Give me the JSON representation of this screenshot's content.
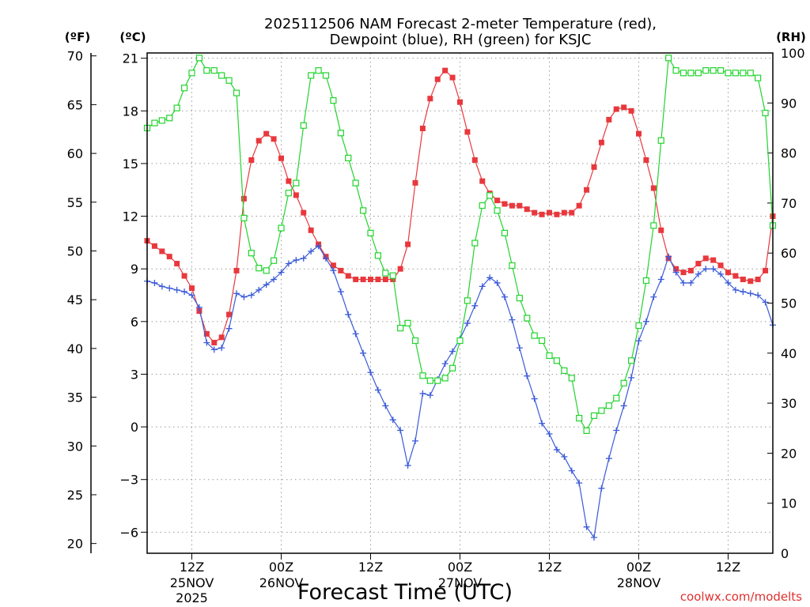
{
  "chart_data": {
    "type": "line",
    "title_lines": [
      "2025112506 NAM Forecast 2-meter Temperature (red),",
      "Dewpoint (blue), RH (green) for KSJC"
    ],
    "xlabel": "Forecast Time (UTC)",
    "credit": "coolwx.com/modelts",
    "unit_labels": {
      "fahrenheit": "(ºF)",
      "celsius": "(ºC)",
      "rh": "(RH)"
    },
    "x_domain": [
      0,
      84
    ],
    "x_ticks": [
      {
        "hour": 6,
        "label": "12Z",
        "sub": [
          "25NOV",
          "2025"
        ]
      },
      {
        "hour": 18,
        "label": "00Z",
        "sub": [
          "26NOV"
        ]
      },
      {
        "hour": 30,
        "label": "12Z",
        "sub": []
      },
      {
        "hour": 42,
        "label": "00Z",
        "sub": [
          "27NOV"
        ]
      },
      {
        "hour": 54,
        "label": "12Z",
        "sub": []
      },
      {
        "hour": 66,
        "label": "00Z",
        "sub": [
          "28NOV"
        ]
      },
      {
        "hour": 78,
        "label": "12Z",
        "sub": []
      }
    ],
    "y_celsius": {
      "range": [
        -7.2,
        21.3
      ],
      "ticks": [
        -6,
        -3,
        0,
        3,
        6,
        9,
        12,
        15,
        18,
        21
      ],
      "tick_labels": [
        "−6",
        "−3",
        "0",
        "3",
        "6",
        "9",
        "12",
        "15",
        "18",
        "21"
      ]
    },
    "y_fahrenheit": {
      "range": [
        19.0,
        70.3
      ],
      "ticks": [
        20,
        25,
        30,
        35,
        40,
        45,
        50,
        55,
        60,
        65,
        70
      ],
      "tick_labels": [
        "20",
        "25",
        "30",
        "35",
        "40",
        "45",
        "50",
        "55",
        "60",
        "65",
        "70"
      ]
    },
    "y_rh": {
      "range": [
        0,
        100
      ],
      "ticks": [
        0,
        10,
        20,
        30,
        40,
        50,
        60,
        70,
        80,
        90,
        100
      ],
      "tick_labels": [
        "0",
        "10",
        "20",
        "30",
        "40",
        "50",
        "60",
        "70",
        "80",
        "90",
        "100"
      ]
    },
    "grid": true,
    "series": [
      {
        "name": "Temperature",
        "color": "#e8383d",
        "marker": "square-filled",
        "axis": "celsius",
        "values": [
          [
            0,
            10.6
          ],
          [
            1,
            10.3
          ],
          [
            2,
            10.0
          ],
          [
            3,
            9.7
          ],
          [
            4,
            9.3
          ],
          [
            5,
            8.6
          ],
          [
            6,
            7.9
          ],
          [
            7,
            6.6
          ],
          [
            8,
            5.3
          ],
          [
            9,
            4.8
          ],
          [
            10,
            5.1
          ],
          [
            11,
            6.4
          ],
          [
            12,
            8.9
          ],
          [
            13,
            13.0
          ],
          [
            14,
            15.2
          ],
          [
            15,
            16.3
          ],
          [
            16,
            16.7
          ],
          [
            17,
            16.4
          ],
          [
            18,
            15.3
          ],
          [
            19,
            14.0
          ],
          [
            20,
            13.2
          ],
          [
            21,
            12.2
          ],
          [
            22,
            11.2
          ],
          [
            23,
            10.4
          ],
          [
            24,
            9.7
          ],
          [
            25,
            9.2
          ],
          [
            26,
            8.9
          ],
          [
            27,
            8.6
          ],
          [
            28,
            8.4
          ],
          [
            29,
            8.4
          ],
          [
            30,
            8.4
          ],
          [
            31,
            8.4
          ],
          [
            32,
            8.4
          ],
          [
            33,
            8.4
          ],
          [
            34,
            9.0
          ],
          [
            35,
            10.4
          ],
          [
            36,
            13.9
          ],
          [
            37,
            17.0
          ],
          [
            38,
            18.7
          ],
          [
            39,
            19.8
          ],
          [
            40,
            20.3
          ],
          [
            41,
            19.9
          ],
          [
            42,
            18.5
          ],
          [
            43,
            16.8
          ],
          [
            44,
            15.2
          ],
          [
            45,
            14.0
          ],
          [
            46,
            13.3
          ],
          [
            47,
            12.9
          ],
          [
            48,
            12.7
          ],
          [
            49,
            12.6
          ],
          [
            50,
            12.6
          ],
          [
            51,
            12.4
          ],
          [
            52,
            12.2
          ],
          [
            53,
            12.1
          ],
          [
            54,
            12.2
          ],
          [
            55,
            12.1
          ],
          [
            56,
            12.2
          ],
          [
            57,
            12.2
          ],
          [
            58,
            12.6
          ],
          [
            59,
            13.5
          ],
          [
            60,
            14.8
          ],
          [
            61,
            16.2
          ],
          [
            62,
            17.5
          ],
          [
            63,
            18.1
          ],
          [
            64,
            18.2
          ],
          [
            65,
            18.0
          ],
          [
            66,
            16.7
          ],
          [
            67,
            15.2
          ],
          [
            68,
            13.6
          ],
          [
            69,
            11.2
          ],
          [
            70,
            9.6
          ],
          [
            71,
            9.0
          ],
          [
            72,
            8.8
          ],
          [
            73,
            8.9
          ],
          [
            74,
            9.3
          ],
          [
            75,
            9.6
          ],
          [
            76,
            9.5
          ],
          [
            77,
            9.2
          ],
          [
            78,
            8.8
          ],
          [
            79,
            8.6
          ],
          [
            80,
            8.4
          ],
          [
            81,
            8.3
          ],
          [
            82,
            8.4
          ],
          [
            83,
            8.9
          ],
          [
            84,
            12.0
          ]
        ]
      },
      {
        "name": "Dewpoint",
        "color": "#3a5ad8",
        "marker": "plus",
        "axis": "celsius",
        "values": [
          [
            0,
            8.3
          ],
          [
            1,
            8.2
          ],
          [
            2,
            8.0
          ],
          [
            3,
            7.9
          ],
          [
            4,
            7.8
          ],
          [
            5,
            7.7
          ],
          [
            6,
            7.5
          ],
          [
            7,
            6.8
          ],
          [
            8,
            4.8
          ],
          [
            9,
            4.4
          ],
          [
            10,
            4.5
          ],
          [
            11,
            5.6
          ],
          [
            12,
            7.6
          ],
          [
            13,
            7.4
          ],
          [
            14,
            7.5
          ],
          [
            15,
            7.8
          ],
          [
            16,
            8.1
          ],
          [
            17,
            8.4
          ],
          [
            18,
            8.8
          ],
          [
            19,
            9.3
          ],
          [
            20,
            9.5
          ],
          [
            21,
            9.6
          ],
          [
            22,
            10.0
          ],
          [
            23,
            10.3
          ],
          [
            24,
            9.6
          ],
          [
            25,
            8.9
          ],
          [
            26,
            7.7
          ],
          [
            27,
            6.4
          ],
          [
            28,
            5.3
          ],
          [
            29,
            4.2
          ],
          [
            30,
            3.1
          ],
          [
            31,
            2.1
          ],
          [
            32,
            1.2
          ],
          [
            33,
            0.4
          ],
          [
            34,
            -0.2
          ],
          [
            35,
            -2.2
          ],
          [
            36,
            -0.8
          ],
          [
            37,
            1.9
          ],
          [
            38,
            1.8
          ],
          [
            39,
            2.7
          ],
          [
            40,
            3.6
          ],
          [
            41,
            4.3
          ],
          [
            42,
            5.0
          ],
          [
            43,
            5.9
          ],
          [
            44,
            6.9
          ],
          [
            45,
            8.0
          ],
          [
            46,
            8.5
          ],
          [
            47,
            8.2
          ],
          [
            48,
            7.4
          ],
          [
            49,
            6.1
          ],
          [
            50,
            4.5
          ],
          [
            51,
            2.9
          ],
          [
            52,
            1.6
          ],
          [
            53,
            0.2
          ],
          [
            54,
            -0.4
          ],
          [
            55,
            -1.3
          ],
          [
            56,
            -1.7
          ],
          [
            57,
            -2.5
          ],
          [
            58,
            -3.2
          ],
          [
            59,
            -5.7
          ],
          [
            60,
            -6.3
          ],
          [
            61,
            -3.5
          ],
          [
            62,
            -1.8
          ],
          [
            63,
            -0.2
          ],
          [
            64,
            1.2
          ],
          [
            65,
            2.8
          ],
          [
            66,
            4.9
          ],
          [
            67,
            6.0
          ],
          [
            68,
            7.4
          ],
          [
            69,
            8.4
          ],
          [
            70,
            9.7
          ],
          [
            71,
            8.8
          ],
          [
            72,
            8.2
          ],
          [
            73,
            8.2
          ],
          [
            74,
            8.7
          ],
          [
            75,
            9.0
          ],
          [
            76,
            9.0
          ],
          [
            77,
            8.7
          ],
          [
            78,
            8.2
          ],
          [
            79,
            7.8
          ],
          [
            80,
            7.7
          ],
          [
            81,
            7.6
          ],
          [
            82,
            7.5
          ],
          [
            83,
            7.1
          ],
          [
            84,
            5.8
          ]
        ]
      },
      {
        "name": "RH",
        "color": "#22d42e",
        "marker": "square-open",
        "axis": "rh",
        "values": [
          [
            0,
            85
          ],
          [
            1,
            86
          ],
          [
            2,
            86.5
          ],
          [
            3,
            87
          ],
          [
            4,
            89
          ],
          [
            5,
            93
          ],
          [
            6,
            96
          ],
          [
            7,
            99
          ],
          [
            8,
            96.5
          ],
          [
            9,
            96.5
          ],
          [
            10,
            95.5
          ],
          [
            11,
            94.5
          ],
          [
            12,
            92
          ],
          [
            13,
            67
          ],
          [
            14,
            60
          ],
          [
            15,
            57
          ],
          [
            16,
            56.5
          ],
          [
            17,
            58.5
          ],
          [
            18,
            65
          ],
          [
            19,
            72
          ],
          [
            20,
            74
          ],
          [
            21,
            85.5
          ],
          [
            22,
            95.5
          ],
          [
            23,
            96.5
          ],
          [
            24,
            95.5
          ],
          [
            25,
            90.5
          ],
          [
            26,
            84
          ],
          [
            27,
            79
          ],
          [
            28,
            74
          ],
          [
            29,
            68.5
          ],
          [
            30,
            64
          ],
          [
            31,
            59.5
          ],
          [
            32,
            56
          ],
          [
            33,
            55.5
          ],
          [
            34,
            45
          ],
          [
            35,
            46
          ],
          [
            36,
            42.5
          ],
          [
            37,
            35.5
          ],
          [
            38,
            34.5
          ],
          [
            39,
            34.5
          ],
          [
            40,
            35
          ],
          [
            41,
            37
          ],
          [
            42,
            42.5
          ],
          [
            43,
            50.5
          ],
          [
            44,
            62
          ],
          [
            45,
            69.5
          ],
          [
            46,
            71.5
          ],
          [
            47,
            68.5
          ],
          [
            48,
            64
          ],
          [
            49,
            57.5
          ],
          [
            50,
            51
          ],
          [
            51,
            47
          ],
          [
            52,
            43.5
          ],
          [
            53,
            42.5
          ],
          [
            54,
            39.5
          ],
          [
            55,
            38.5
          ],
          [
            56,
            36.5
          ],
          [
            57,
            35
          ],
          [
            58,
            27
          ],
          [
            59,
            24.5
          ],
          [
            60,
            27.5
          ],
          [
            61,
            28.5
          ],
          [
            62,
            29.5
          ],
          [
            63,
            31
          ],
          [
            64,
            34
          ],
          [
            65,
            38.5
          ],
          [
            66,
            45.5
          ],
          [
            67,
            54.5
          ],
          [
            68,
            65.5
          ],
          [
            69,
            82.5
          ],
          [
            70,
            99
          ],
          [
            71,
            96.5
          ],
          [
            72,
            96
          ],
          [
            73,
            96
          ],
          [
            74,
            96
          ],
          [
            75,
            96.5
          ],
          [
            76,
            96.5
          ],
          [
            77,
            96.5
          ],
          [
            78,
            96
          ],
          [
            79,
            96
          ],
          [
            80,
            96
          ],
          [
            81,
            96
          ],
          [
            82,
            95
          ],
          [
            83,
            88
          ],
          [
            84,
            65.5
          ]
        ]
      }
    ]
  }
}
